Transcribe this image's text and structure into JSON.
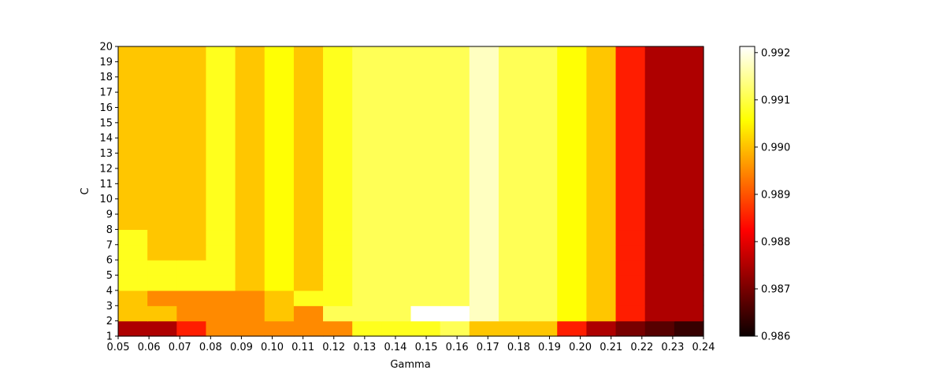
{
  "chart_data": {
    "type": "heatmap",
    "title": "",
    "xlabel": "Gamma",
    "ylabel": "C",
    "x_ticks": [
      "0.05",
      "0.06",
      "0.07",
      "0.08",
      "0.09",
      "0.10",
      "0.11",
      "0.12",
      "0.13",
      "0.14",
      "0.15",
      "0.16",
      "0.17",
      "0.18",
      "0.19",
      "0.20",
      "0.21",
      "0.22",
      "0.23",
      "0.24"
    ],
    "y_ticks": [
      "1",
      "2",
      "3",
      "4",
      "5",
      "6",
      "7",
      "8",
      "9",
      "10",
      "11",
      "12",
      "13",
      "14",
      "15",
      "16",
      "17",
      "18",
      "19",
      "20"
    ],
    "colormap": "hot",
    "colorbar": {
      "vmin": 0.986,
      "vmax": 0.99213,
      "ticks": [
        "0.986",
        "0.987",
        "0.988",
        "0.989",
        "0.990",
        "0.991",
        "0.992"
      ]
    },
    "rows_c": [
      {
        "c": "1-2",
        "values": [
          0.9875,
          0.9875,
          0.9885,
          0.9895,
          0.9895,
          0.9895,
          0.9895,
          0.9895,
          0.99075,
          0.99075,
          0.99075,
          0.9911,
          0.99005,
          0.99005,
          0.99005,
          0.9885,
          0.9875,
          0.987,
          0.9867,
          0.9864
        ]
      },
      {
        "c": "2-3",
        "values": [
          0.99005,
          0.99005,
          0.9895,
          0.9895,
          0.9895,
          0.99005,
          0.9895,
          0.9911,
          0.9911,
          0.9911,
          0.99213,
          0.99213,
          0.99175,
          0.9911,
          0.9911,
          0.9906,
          0.99005,
          0.9885,
          0.9875,
          0.9875
        ]
      },
      {
        "c": "3-4",
        "values": [
          0.99005,
          0.9895,
          0.9895,
          0.9895,
          0.9895,
          0.99005,
          0.99075,
          0.99075,
          0.9911,
          0.9911,
          0.9911,
          0.9911,
          0.99175,
          0.9911,
          0.9911,
          0.9906,
          0.99005,
          0.9885,
          0.9875,
          0.9875
        ]
      },
      {
        "c": "4-5",
        "values": [
          0.99075,
          0.99075,
          0.99075,
          0.99075,
          0.99005,
          0.9906,
          0.99005,
          0.99075,
          0.9911,
          0.9911,
          0.9911,
          0.9911,
          0.99175,
          0.9911,
          0.9911,
          0.9906,
          0.99005,
          0.9885,
          0.9875,
          0.9875
        ]
      },
      {
        "c": "5-6",
        "values": [
          0.99075,
          0.99075,
          0.99075,
          0.99075,
          0.99005,
          0.9906,
          0.99005,
          0.99075,
          0.9911,
          0.9911,
          0.9911,
          0.9911,
          0.99175,
          0.9911,
          0.9911,
          0.9906,
          0.99005,
          0.9885,
          0.9875,
          0.9875
        ]
      },
      {
        "c": "6-7",
        "values": [
          0.99075,
          0.99005,
          0.99005,
          0.99075,
          0.99005,
          0.9906,
          0.99005,
          0.99075,
          0.9911,
          0.9911,
          0.9911,
          0.9911,
          0.99175,
          0.9911,
          0.9911,
          0.9906,
          0.99005,
          0.9885,
          0.9875,
          0.9875
        ]
      },
      {
        "c": "7-8",
        "values": [
          0.99075,
          0.99005,
          0.99005,
          0.99075,
          0.99005,
          0.9906,
          0.99005,
          0.99075,
          0.9911,
          0.9911,
          0.9911,
          0.9911,
          0.99175,
          0.9911,
          0.9911,
          0.9906,
          0.99005,
          0.9885,
          0.9875,
          0.9875
        ]
      },
      {
        "c": "8-20",
        "values": [
          0.99005,
          0.99005,
          0.99005,
          0.99075,
          0.99005,
          0.9906,
          0.99005,
          0.99075,
          0.9911,
          0.9911,
          0.9911,
          0.9911,
          0.99175,
          0.9911,
          0.9911,
          0.9906,
          0.99005,
          0.9885,
          0.9875,
          0.9875
        ]
      }
    ]
  }
}
